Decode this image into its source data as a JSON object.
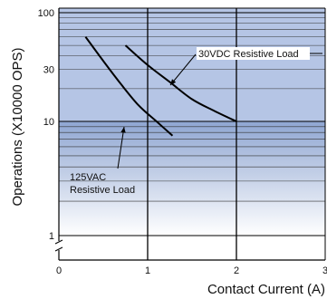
{
  "chart_data": {
    "type": "line",
    "xlabel": "Contact Current (A)",
    "ylabel": "Operations (X10000 OPS)",
    "xlim": [
      0,
      3
    ],
    "ylim": [
      1,
      100
    ],
    "y_scale": "log",
    "grid": true,
    "x_ticks": [
      "0",
      "1",
      "2",
      "3"
    ],
    "y_ticks": [
      {
        "value": 100,
        "label": "100"
      },
      {
        "value": 30,
        "label": "30"
      },
      {
        "value": 10,
        "label": "10"
      },
      {
        "value": 1,
        "label": "1"
      }
    ],
    "series": [
      {
        "name": "30VDC  Resistive Load",
        "x": [
          0.75,
          1.0,
          1.25,
          1.5,
          1.75,
          2.0
        ],
        "y": [
          50,
          33,
          23,
          16,
          12.5,
          10
        ]
      },
      {
        "name": "125VAC Resistive Load",
        "x": [
          0.3,
          0.5,
          0.7,
          0.9,
          1.1,
          1.28
        ],
        "y": [
          60,
          36,
          22,
          14,
          10,
          7.5
        ]
      }
    ],
    "annotations": [
      {
        "text": "30VDC  Resistive Load",
        "series": 0
      },
      {
        "text": "125VAC",
        "series": 1
      },
      {
        "text": "Resistive Load",
        "series": 1
      }
    ]
  }
}
